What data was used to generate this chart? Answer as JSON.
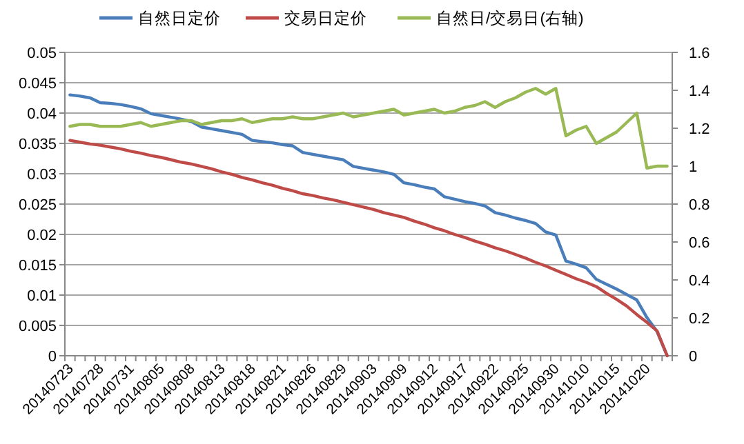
{
  "chart_data": {
    "type": "line",
    "categories": [
      "20140723",
      null,
      null,
      "20140728",
      null,
      null,
      "20140731",
      null,
      null,
      "20140805",
      null,
      null,
      "20140808",
      null,
      null,
      "20140813",
      null,
      null,
      "20140818",
      null,
      null,
      "20140821",
      null,
      null,
      "20140826",
      null,
      null,
      "20140829",
      null,
      null,
      "20140903",
      null,
      null,
      "20140909",
      null,
      null,
      "20140912",
      null,
      null,
      "20140917",
      null,
      null,
      "20140922",
      null,
      null,
      "20140925",
      null,
      null,
      "20140930",
      null,
      null,
      "20141010",
      null,
      null,
      "20141015",
      null,
      null,
      "20141020",
      null,
      null
    ],
    "series": [
      {
        "name": "自然日定价",
        "color": "#4a7ebb",
        "values": [
          0.043,
          0.0428,
          0.0425,
          0.0417,
          0.0416,
          0.0414,
          0.0411,
          0.0407,
          0.0399,
          0.0396,
          0.0393,
          0.039,
          0.0386,
          0.0377,
          0.0374,
          0.0371,
          0.0368,
          0.0365,
          0.0355,
          0.0353,
          0.0351,
          0.0348,
          0.0346,
          0.0335,
          0.0332,
          0.0329,
          0.0326,
          0.0323,
          0.0312,
          0.0309,
          0.0306,
          0.0303,
          0.0299,
          0.0285,
          0.0282,
          0.0278,
          0.0275,
          0.0262,
          0.0258,
          0.0254,
          0.0251,
          0.0247,
          0.0236,
          0.0232,
          0.0227,
          0.0223,
          0.0218,
          0.0204,
          0.0199,
          0.0156,
          0.0151,
          0.0145,
          0.0126,
          0.0118,
          0.011,
          0.0101,
          0.0092,
          0.0063,
          0.004,
          0
        ]
      },
      {
        "name": "交易日定价",
        "color": "#be4b48",
        "values": [
          0.0355,
          0.0352,
          0.0349,
          0.0347,
          0.0344,
          0.0341,
          0.0337,
          0.0334,
          0.033,
          0.0327,
          0.0323,
          0.0319,
          0.0316,
          0.0312,
          0.0308,
          0.0303,
          0.0299,
          0.0294,
          0.029,
          0.0285,
          0.0281,
          0.0276,
          0.0272,
          0.0267,
          0.0264,
          0.026,
          0.0257,
          0.0253,
          0.0249,
          0.0245,
          0.0241,
          0.0236,
          0.0232,
          0.0228,
          0.0222,
          0.0217,
          0.0211,
          0.0206,
          0.02,
          0.0195,
          0.0189,
          0.0184,
          0.0178,
          0.0173,
          0.0167,
          0.0161,
          0.0154,
          0.0148,
          0.0141,
          0.0134,
          0.0127,
          0.0121,
          0.0114,
          0.0103,
          0.0093,
          0.0082,
          0.0068,
          0.0055,
          0.0041,
          0
        ]
      },
      {
        "name": "自然日/交易日(右轴)",
        "color": "#98b954",
        "axis": "y2",
        "values": [
          1.21,
          1.22,
          1.22,
          1.21,
          1.21,
          1.21,
          1.22,
          1.23,
          1.21,
          1.22,
          1.23,
          1.24,
          1.24,
          1.22,
          1.23,
          1.24,
          1.24,
          1.25,
          1.23,
          1.24,
          1.25,
          1.25,
          1.26,
          1.25,
          1.25,
          1.26,
          1.27,
          1.28,
          1.26,
          1.27,
          1.28,
          1.29,
          1.3,
          1.27,
          1.28,
          1.29,
          1.3,
          1.28,
          1.29,
          1.31,
          1.32,
          1.34,
          1.31,
          1.34,
          1.36,
          1.39,
          1.41,
          1.38,
          1.41,
          1.16,
          1.19,
          1.21,
          1.12,
          1.15,
          1.18,
          1.23,
          1.28,
          0.99,
          1.0,
          1.0
        ]
      }
    ],
    "ylim": [
      0,
      0.05
    ],
    "yticks": [
      0,
      0.005,
      0.01,
      0.015,
      0.02,
      0.025,
      0.03,
      0.035,
      0.04,
      0.045,
      0.05
    ],
    "y2lim": [
      0,
      1.6
    ],
    "y2ticks": [
      0,
      0.2,
      0.4,
      0.6,
      0.8,
      1,
      1.2,
      1.4,
      1.6
    ],
    "grid": "y",
    "legend": "top",
    "marker": "none",
    "line_style": "solid"
  }
}
